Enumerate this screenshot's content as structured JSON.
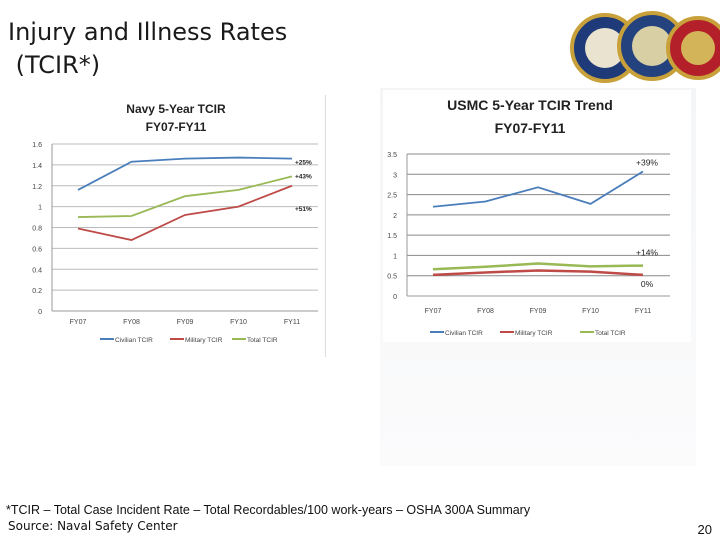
{
  "slide": {
    "title_lines": [
      "Injury and Illness Rates",
      " (TCIR*)"
    ],
    "footnote": "*TCIR – Total Case Incident Rate – Total Recordables/100 work-years – OSHA 300A  Summary",
    "source": "Source: Naval Safety Center",
    "page_number": "20"
  },
  "colors": {
    "civilian": "#4a7ebb",
    "military": "#be4b48",
    "total": "#98b954"
  },
  "chart_data": [
    {
      "type": "line",
      "title": "Navy 5-Year TCIR",
      "subtitle": "FY07-FY11",
      "categories": [
        "FY07",
        "FY08",
        "FY09",
        "FY10",
        "FY11"
      ],
      "ylim": [
        0,
        1.6
      ],
      "yticks": [
        "0",
        "0.2",
        "0.4",
        "0.6",
        "0.8",
        "1",
        "1.2",
        "1.4",
        "1.6"
      ],
      "grid": true,
      "legend": "bottom",
      "series": [
        {
          "name": "Civilian TCIR",
          "values": [
            1.16,
            1.43,
            1.46,
            1.47,
            1.46
          ],
          "annotation": "+25%"
        },
        {
          "name": "Military TCIR",
          "values": [
            0.79,
            0.68,
            0.92,
            1.0,
            1.2
          ],
          "annotation": "+51%"
        },
        {
          "name": "Total TCIR",
          "values": [
            0.9,
            0.91,
            1.1,
            1.16,
            1.29
          ],
          "annotation": "+43%"
        }
      ]
    },
    {
      "type": "line",
      "title": "USMC 5-Year TCIR Trend",
      "subtitle": "FY07-FY11",
      "categories": [
        "FY07",
        "FY08",
        "FY09",
        "FY10",
        "FY11"
      ],
      "ylim": [
        0,
        3.5
      ],
      "yticks": [
        "0",
        "0.5",
        "1",
        "1.5",
        "2",
        "2.5",
        "3",
        "3.5"
      ],
      "grid": true,
      "legend": "bottom",
      "series": [
        {
          "name": "Civilian TCIR",
          "values": [
            2.2,
            2.33,
            2.68,
            2.27,
            3.07
          ],
          "annotation": "+39%"
        },
        {
          "name": "Military TCIR",
          "values": [
            0.52,
            0.58,
            0.63,
            0.6,
            0.52
          ],
          "annotation": "0%"
        },
        {
          "name": "Total TCIR",
          "values": [
            0.66,
            0.72,
            0.8,
            0.73,
            0.75
          ],
          "annotation": "+14%"
        }
      ]
    }
  ]
}
